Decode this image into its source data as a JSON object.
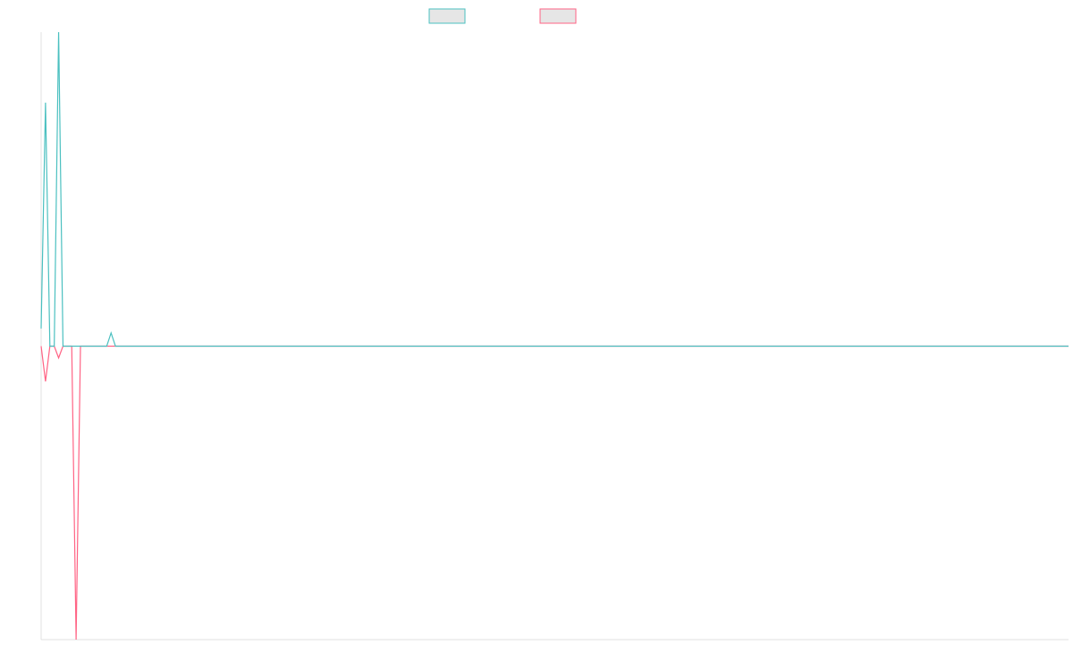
{
  "chart_data": {
    "type": "line",
    "title": "",
    "xlabel": "",
    "ylabel": "",
    "grid": false,
    "legend_position": "top-center",
    "x_points": 236,
    "ylim": [
      -10,
      10.7
    ],
    "legend": [
      {
        "name": "",
        "color": "#4bc0c0",
        "fill": "#e6e6e6"
      },
      {
        "name": "",
        "color": "#ff6384",
        "fill": "#e6e6e6"
      }
    ],
    "series": [
      {
        "name": "",
        "color": "#4bc0c0",
        "values": [
          0.6,
          8.3,
          0,
          0,
          10.7,
          0,
          0,
          0,
          0,
          0,
          0,
          0,
          0,
          0,
          0,
          0,
          0.45,
          0
        ]
      },
      {
        "name": "",
        "color": "#ff6384",
        "values": [
          0,
          -1.2,
          0,
          0,
          -0.4,
          0,
          0,
          0,
          -10,
          0,
          0,
          0,
          0,
          0,
          0,
          0,
          0,
          0
        ]
      }
    ]
  }
}
